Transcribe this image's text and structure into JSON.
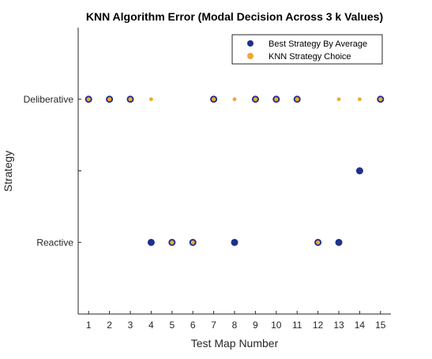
{
  "chart_data": {
    "type": "scatter",
    "title": "KNN Algorithm Error (Modal Decision Across 3 k Values)",
    "xlabel": "Test Map Number",
    "ylabel": "Strategy",
    "x_ticks": [
      1,
      2,
      3,
      4,
      5,
      6,
      7,
      8,
      9,
      10,
      11,
      12,
      13,
      14,
      15
    ],
    "xlim": [
      0.5,
      15.5
    ],
    "ylim": [
      -0.5,
      1.5
    ],
    "y_ticks": [
      {
        "value": 0,
        "label": "Reactive"
      },
      {
        "value": 0.5,
        "label": ""
      },
      {
        "value": 1,
        "label": "Deliberative"
      }
    ],
    "grid": false,
    "legend_position": "top-right",
    "series": [
      {
        "name": "Best Strategy By Average",
        "color": "#1f2f8f",
        "x": [
          1,
          2,
          3,
          4,
          5,
          6,
          7,
          8,
          9,
          10,
          11,
          12,
          13,
          14,
          15
        ],
        "y": [
          1,
          1,
          1,
          0,
          0,
          0,
          1,
          0,
          1,
          1,
          1,
          0,
          0,
          0.5,
          1
        ]
      },
      {
        "name": "KNN Strategy Choice",
        "color": "#f0a830",
        "x": [
          1,
          2,
          3,
          4,
          5,
          6,
          7,
          8,
          9,
          10,
          11,
          12,
          13,
          14,
          15
        ],
        "y": [
          1,
          1,
          1,
          1,
          0,
          0,
          1,
          1,
          1,
          1,
          1,
          0,
          1,
          1,
          1
        ]
      }
    ]
  }
}
